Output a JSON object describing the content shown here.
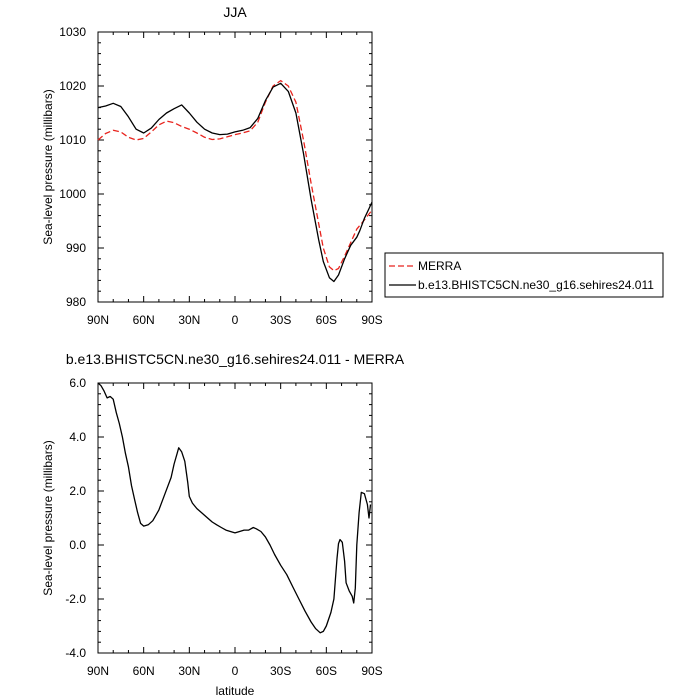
{
  "chart_data": [
    {
      "type": "line",
      "title": "JJA",
      "xlabel": "",
      "ylabel": "Sea-level pressure (millibars)",
      "xlim": [
        90,
        -90
      ],
      "ylim": [
        980,
        1030
      ],
      "xticks": [
        90,
        60,
        30,
        0,
        -30,
        -60,
        -90
      ],
      "xtick_labels": [
        "90N",
        "60N",
        "30N",
        "0",
        "30S",
        "60S",
        "90S"
      ],
      "yticks": [
        980,
        990,
        1000,
        1010,
        1020,
        1030
      ],
      "ytick_labels": [
        "980",
        "990",
        "1000",
        "1010",
        "1020",
        "1030"
      ],
      "legend_position": "right",
      "series": [
        {
          "name": "MERRA",
          "color": "#e8231d",
          "dash": true,
          "points": [
            [
              90,
              1010
            ],
            [
              85,
              1011.2
            ],
            [
              80,
              1011.8
            ],
            [
              75,
              1011.5
            ],
            [
              70,
              1010.5
            ],
            [
              65,
              1010
            ],
            [
              60,
              1010.3
            ],
            [
              55,
              1011.5
            ],
            [
              50,
              1012.8
            ],
            [
              45,
              1013.5
            ],
            [
              40,
              1013.2
            ],
            [
              35,
              1012.5
            ],
            [
              30,
              1012
            ],
            [
              25,
              1011.3
            ],
            [
              20,
              1010.5
            ],
            [
              15,
              1010.1
            ],
            [
              10,
              1010.2
            ],
            [
              5,
              1010.6
            ],
            [
              0,
              1011
            ],
            [
              -5,
              1011.3
            ],
            [
              -10,
              1011.7
            ],
            [
              -15,
              1013.3
            ],
            [
              -20,
              1017
            ],
            [
              -25,
              1020
            ],
            [
              -30,
              1021
            ],
            [
              -35,
              1020
            ],
            [
              -40,
              1017
            ],
            [
              -45,
              1010
            ],
            [
              -50,
              1002
            ],
            [
              -55,
              994.5
            ],
            [
              -58,
              990
            ],
            [
              -62,
              986.5
            ],
            [
              -65,
              985.8
            ],
            [
              -68,
              986.2
            ],
            [
              -72,
              988.5
            ],
            [
              -76,
              991
            ],
            [
              -80,
              993.5
            ],
            [
              -85,
              995.2
            ],
            [
              -90,
              997
            ]
          ]
        },
        {
          "name": "b.e13.BHISTC5CN.ne30_g16.sehires24.011",
          "color": "#000000",
          "dash": false,
          "points": [
            [
              90,
              1016
            ],
            [
              85,
              1016.3
            ],
            [
              80,
              1016.8
            ],
            [
              75,
              1016.2
            ],
            [
              70,
              1014.3
            ],
            [
              65,
              1012
            ],
            [
              60,
              1011.3
            ],
            [
              55,
              1012.2
            ],
            [
              50,
              1013.8
            ],
            [
              45,
              1015
            ],
            [
              40,
              1015.8
            ],
            [
              35,
              1016.5
            ],
            [
              30,
              1015
            ],
            [
              25,
              1013.3
            ],
            [
              20,
              1012
            ],
            [
              15,
              1011.3
            ],
            [
              10,
              1011
            ],
            [
              5,
              1011.1
            ],
            [
              0,
              1011.5
            ],
            [
              -5,
              1011.8
            ],
            [
              -10,
              1012.3
            ],
            [
              -15,
              1014
            ],
            [
              -20,
              1017.3
            ],
            [
              -25,
              1019.8
            ],
            [
              -30,
              1020.5
            ],
            [
              -35,
              1019
            ],
            [
              -40,
              1015
            ],
            [
              -45,
              1007.5
            ],
            [
              -50,
              999
            ],
            [
              -55,
              991.5
            ],
            [
              -58,
              987.5
            ],
            [
              -62,
              984.5
            ],
            [
              -65,
              983.8
            ],
            [
              -68,
              985
            ],
            [
              -72,
              988
            ],
            [
              -76,
              990.5
            ],
            [
              -80,
              992
            ],
            [
              -82,
              993.2
            ],
            [
              -85,
              995.5
            ],
            [
              -88,
              997.3
            ],
            [
              -90,
              998.5
            ]
          ]
        }
      ]
    },
    {
      "type": "line",
      "title": "b.e13.BHISTC5CN.ne30_g16.sehires24.011 - MERRA",
      "xlabel": "latitude",
      "ylabel": "Sea-level pressure (millibars)",
      "xlim": [
        90,
        -90
      ],
      "ylim": [
        -4,
        6
      ],
      "xticks": [
        90,
        60,
        30,
        0,
        -30,
        -60,
        -90
      ],
      "xtick_labels": [
        "90N",
        "60N",
        "30N",
        "0",
        "30S",
        "60S",
        "90S"
      ],
      "yticks": [
        -4,
        -2,
        0,
        2,
        4,
        6
      ],
      "ytick_labels": [
        "-4.0",
        "-2.0",
        "0.0",
        "2.0",
        "4.0",
        "6.0"
      ],
      "series": [
        {
          "color": "#000000",
          "dash": false,
          "points": [
            [
              90,
              6
            ],
            [
              88,
              5.9
            ],
            [
              86,
              5.7
            ],
            [
              84,
              5.45
            ],
            [
              82,
              5.5
            ],
            [
              80,
              5.4
            ],
            [
              78,
              4.9
            ],
            [
              76,
              4.5
            ],
            [
              74,
              4
            ],
            [
              72,
              3.4
            ],
            [
              70,
              2.9
            ],
            [
              68,
              2.2
            ],
            [
              66,
              1.7
            ],
            [
              64,
              1.2
            ],
            [
              62,
              0.8
            ],
            [
              60,
              0.7
            ],
            [
              57,
              0.75
            ],
            [
              54,
              0.9
            ],
            [
              50,
              1.3
            ],
            [
              46,
              1.9
            ],
            [
              42,
              2.5
            ],
            [
              40,
              3
            ],
            [
              38,
              3.4
            ],
            [
              37,
              3.6
            ],
            [
              35,
              3.45
            ],
            [
              33,
              3.1
            ],
            [
              31,
              2.3
            ],
            [
              30,
              1.8
            ],
            [
              28,
              1.55
            ],
            [
              25,
              1.35
            ],
            [
              22,
              1.2
            ],
            [
              18,
              1
            ],
            [
              15,
              0.85
            ],
            [
              12,
              0.75
            ],
            [
              9,
              0.65
            ],
            [
              6,
              0.55
            ],
            [
              3,
              0.5
            ],
            [
              0,
              0.45
            ],
            [
              -3,
              0.5
            ],
            [
              -6,
              0.55
            ],
            [
              -9,
              0.55
            ],
            [
              -12,
              0.65
            ],
            [
              -14,
              0.6
            ],
            [
              -17,
              0.5
            ],
            [
              -20,
              0.3
            ],
            [
              -23,
              0
            ],
            [
              -26,
              -0.35
            ],
            [
              -30,
              -0.75
            ],
            [
              -34,
              -1.1
            ],
            [
              -38,
              -1.55
            ],
            [
              -42,
              -2
            ],
            [
              -46,
              -2.45
            ],
            [
              -50,
              -2.85
            ],
            [
              -53,
              -3.1
            ],
            [
              -56,
              -3.25
            ],
            [
              -58,
              -3.2
            ],
            [
              -60,
              -3
            ],
            [
              -63,
              -2.5
            ],
            [
              -65,
              -2
            ],
            [
              -67,
              -0.5
            ],
            [
              -68,
              0.05
            ],
            [
              -69,
              0.2
            ],
            [
              -70.5,
              0.1
            ],
            [
              -72,
              -0.6
            ],
            [
              -73,
              -1.4
            ],
            [
              -75,
              -1.7
            ],
            [
              -77,
              -1.9
            ],
            [
              -78,
              -2.15
            ],
            [
              -79,
              -1.6
            ],
            [
              -80,
              0
            ],
            [
              -81.5,
              1.2
            ],
            [
              -83,
              1.95
            ],
            [
              -85,
              1.9
            ],
            [
              -87,
              1.5
            ],
            [
              -88,
              1
            ],
            [
              -89,
              1.5
            ]
          ]
        }
      ]
    }
  ]
}
